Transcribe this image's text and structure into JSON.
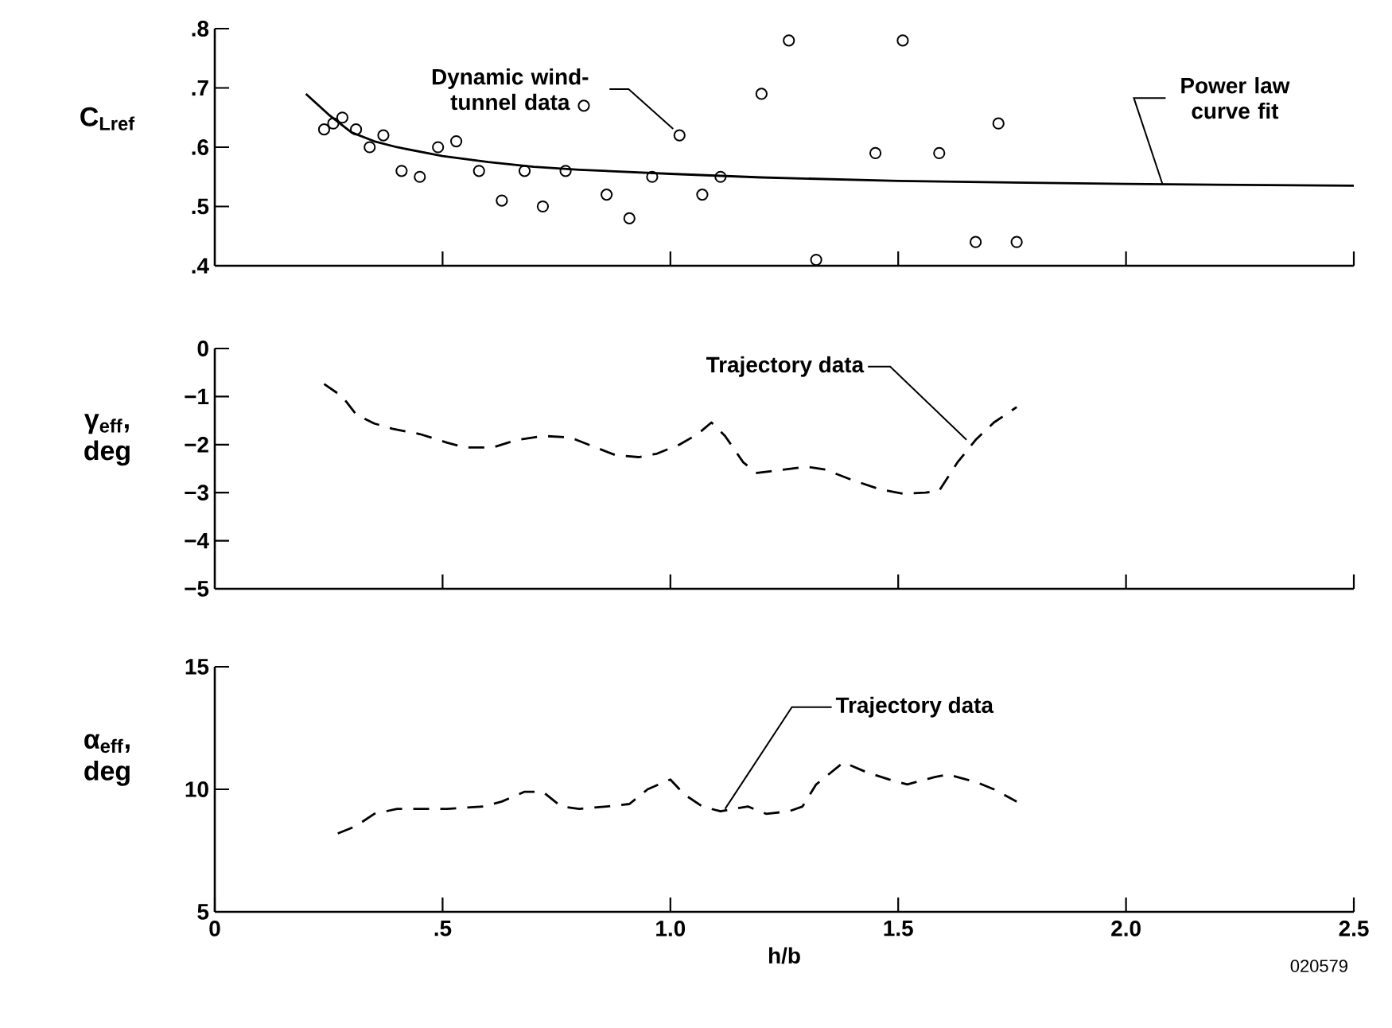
{
  "chart_data": [
    {
      "type": "scatter",
      "ylabel": "C$_{Lref}$",
      "xlim": [
        0,
        2.5
      ],
      "ylim": [
        0.4,
        0.8
      ],
      "tick_labels": "y",
      "xticks": [
        {
          "value": 0.5,
          "label": null
        },
        {
          "value": 1,
          "label": null
        },
        {
          "value": 1.5,
          "label": null
        },
        {
          "value": 2,
          "label": null
        },
        {
          "value": 2.5,
          "label": null
        }
      ],
      "yticks": [
        {
          "value": 0.4,
          "label": ".4"
        },
        {
          "value": 0.5,
          "label": ".5"
        },
        {
          "value": 0.6,
          "label": ".6"
        },
        {
          "value": 0.7,
          "label": ".7"
        },
        {
          "value": 0.8,
          "label": ".8"
        }
      ],
      "series": [
        {
          "type": "scatter",
          "color": "#000000",
          "marker": "circle",
          "x": [
            0.24,
            0.26,
            0.28,
            0.31,
            0.34,
            0.37,
            0.41,
            0.45,
            0.49,
            0.53,
            0.58,
            0.63,
            0.68,
            0.72,
            0.77,
            0.81,
            0.86,
            0.91,
            0.96,
            1.02,
            1.07,
            1.11,
            1.2,
            1.26,
            1.32,
            1.45,
            1.51,
            1.59,
            1.67,
            1.72,
            1.76
          ],
          "values": [
            0.63,
            0.64,
            0.65,
            0.63,
            0.6,
            0.62,
            0.56,
            0.55,
            0.6,
            0.61,
            0.56,
            0.51,
            0.56,
            0.5,
            0.56,
            0.67,
            0.52,
            0.48,
            0.55,
            0.62,
            0.52,
            0.55,
            0.69,
            0.78,
            0.41,
            0.59,
            0.78,
            0.59,
            0.44,
            0.64,
            0.44
          ]
        },
        {
          "type": "line",
          "color": "#000000",
          "marker": "none",
          "line_style": "solid",
          "x": [
            0.2,
            0.25,
            0.3,
            0.35,
            0.4,
            0.5,
            0.6,
            0.7,
            0.8,
            1.0,
            1.2,
            1.5,
            2.0,
            2.5
          ],
          "values": [
            0.69,
            0.655,
            0.625,
            0.61,
            0.6,
            0.585,
            0.575,
            0.567,
            0.562,
            0.555,
            0.549,
            0.543,
            0.538,
            0.535
          ]
        }
      ],
      "annotations": [
        {
          "text": "Dynamic wind-tunnel data",
          "x": 1.02,
          "y": 0.62
        },
        {
          "text": "Power law curve fit",
          "x": 2.08,
          "y": 0.538
        }
      ]
    },
    {
      "type": "line",
      "ylabel": "γ$_{eff}$, deg",
      "xlim": [
        0,
        2.5
      ],
      "ylim": [
        -5,
        0
      ],
      "tick_labels": "y",
      "xticks": [
        {
          "value": 0.5,
          "label": null
        },
        {
          "value": 1,
          "label": null
        },
        {
          "value": 1.5,
          "label": null
        },
        {
          "value": 2,
          "label": null
        },
        {
          "value": 2.5,
          "label": null
        }
      ],
      "yticks": [
        {
          "value": -5,
          "label": "−5"
        },
        {
          "value": -4,
          "label": "−4"
        },
        {
          "value": -3,
          "label": "−3"
        },
        {
          "value": -2,
          "label": "−2"
        },
        {
          "value": -1,
          "label": "−1"
        },
        0
      ],
      "series": [
        {
          "color": "#000000",
          "marker": "none",
          "line_style": "dashed",
          "x": [
            0.24,
            0.28,
            0.31,
            0.35,
            0.39,
            0.45,
            0.51,
            0.55,
            0.61,
            0.66,
            0.72,
            0.78,
            0.82,
            0.88,
            0.93,
            0.97,
            1.02,
            1.06,
            1.09,
            1.12,
            1.16,
            1.19,
            1.25,
            1.3,
            1.34,
            1.4,
            1.46,
            1.51,
            1.56,
            1.59,
            1.63,
            1.67,
            1.71,
            1.76
          ],
          "values": [
            -0.74,
            -1.0,
            -1.37,
            -1.56,
            -1.67,
            -1.78,
            -1.96,
            -2.06,
            -2.06,
            -1.91,
            -1.82,
            -1.85,
            -2.0,
            -2.22,
            -2.26,
            -2.19,
            -2.0,
            -1.78,
            -1.54,
            -1.82,
            -2.37,
            -2.59,
            -2.52,
            -2.46,
            -2.52,
            -2.74,
            -2.93,
            -3.02,
            -3.0,
            -2.96,
            -2.37,
            -1.9,
            -1.54,
            -1.22
          ]
        }
      ],
      "annotations": [
        {
          "text": "Trajectory data",
          "x": 1.65,
          "y": -1.9
        }
      ]
    },
    {
      "type": "line",
      "ylabel": "α$_{eff}$, deg",
      "xlabel": "h/b",
      "xlim": [
        0,
        2.5
      ],
      "ylim": [
        5,
        15
      ],
      "xticks": [
        0,
        {
          "value": 0.5,
          "label": ".5"
        },
        {
          "value": 1,
          "label": "1.0"
        },
        1.5,
        {
          "value": 2,
          "label": "2.0"
        },
        2.5
      ],
      "yticks": [
        5,
        10,
        15
      ],
      "series": [
        {
          "color": "#000000",
          "marker": "none",
          "line_style": "dashed",
          "x": [
            0.27,
            0.31,
            0.35,
            0.4,
            0.45,
            0.51,
            0.59,
            0.63,
            0.68,
            0.72,
            0.76,
            0.8,
            0.86,
            0.91,
            0.95,
            1.0,
            1.03,
            1.07,
            1.11,
            1.17,
            1.21,
            1.26,
            1.29,
            1.32,
            1.38,
            1.43,
            1.48,
            1.52,
            1.58,
            1.61,
            1.67,
            1.71,
            1.76
          ],
          "values": [
            8.2,
            8.5,
            9.0,
            9.2,
            9.2,
            9.2,
            9.3,
            9.5,
            9.9,
            9.9,
            9.3,
            9.2,
            9.3,
            9.4,
            10.0,
            10.4,
            9.8,
            9.3,
            9.1,
            9.3,
            9.0,
            9.1,
            9.3,
            10.2,
            11.1,
            10.7,
            10.4,
            10.2,
            10.5,
            10.6,
            10.3,
            10.0,
            9.5
          ]
        }
      ],
      "annotations": [
        {
          "text": "Trajectory data",
          "x": 1.12,
          "y": 9.2
        },
        "020579"
      ]
    }
  ]
}
